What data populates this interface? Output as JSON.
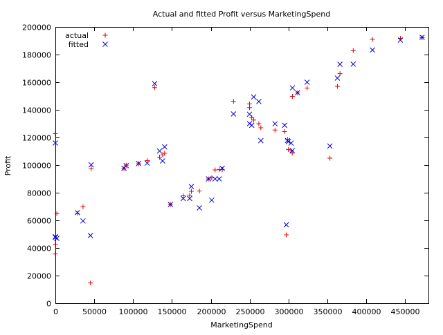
{
  "chart_data": {
    "type": "scatter",
    "title": "Actual and fitted Profit versus MarketingSpend",
    "xlabel": "MarketingSpend",
    "ylabel": "Profit",
    "xlim": [
      0,
      480000
    ],
    "ylim": [
      0,
      200000
    ],
    "xticks": [
      0,
      50000,
      100000,
      150000,
      200000,
      250000,
      300000,
      350000,
      400000,
      450000
    ],
    "yticks": [
      0,
      20000,
      40000,
      60000,
      80000,
      100000,
      120000,
      140000,
      160000,
      180000,
      200000
    ],
    "legend": "top-left",
    "grid": false,
    "series": [
      {
        "name": "actual",
        "marker": "plus",
        "color": "#e00000",
        "points": [
          [
            471784,
            192262
          ],
          [
            443899,
            191792
          ],
          [
            407935,
            191050
          ],
          [
            383200,
            182902
          ],
          [
            366168,
            166188
          ],
          [
            362861,
            156991
          ],
          [
            127717,
            156123
          ],
          [
            323877,
            155753
          ],
          [
            311613,
            152212
          ],
          [
            304982,
            149760
          ],
          [
            229161,
            146122
          ],
          [
            249745,
            144259
          ],
          [
            249839,
            141586
          ],
          [
            252665,
            134308
          ],
          [
            255161,
            132602
          ],
          [
            261776,
            129918
          ],
          [
            264346,
            126993
          ],
          [
            282574,
            125371
          ],
          [
            294920,
            124267
          ],
          [
            0,
            122777
          ],
          [
            298664,
            118474
          ],
          [
            299737,
            111313
          ],
          [
            303320,
            110352
          ],
          [
            304768,
            108734
          ],
          [
            140574,
            108552
          ],
          [
            137962,
            107405
          ],
          [
            134051,
            105734
          ],
          [
            353184,
            105008
          ],
          [
            118148,
            103282
          ],
          [
            107138,
            101004
          ],
          [
            91131,
            99938
          ],
          [
            88219,
            97483
          ],
          [
            46086,
            97427
          ],
          [
            214635,
            96779
          ],
          [
            210798,
            96713
          ],
          [
            205518,
            96480
          ],
          [
            201127,
            90708
          ],
          [
            197029,
            89949
          ],
          [
            185266,
            81230
          ],
          [
            174999,
            81006
          ],
          [
            172796,
            78240
          ],
          [
            164471,
            77799
          ],
          [
            148001,
            71498
          ],
          [
            35534,
            69759
          ],
          [
            28335,
            65200
          ],
          [
            1904,
            64927
          ],
          [
            297114,
            49491
          ],
          [
            0,
            42560
          ],
          [
            0,
            35673
          ],
          [
            45174,
            14681
          ]
        ]
      },
      {
        "name": "fitted",
        "marker": "cross",
        "color": "#0000e0",
        "points": [
          [
            471784,
            192500
          ],
          [
            443899,
            190500
          ],
          [
            407935,
            183300
          ],
          [
            383200,
            173100
          ],
          [
            366168,
            173000
          ],
          [
            362861,
            163000
          ],
          [
            127717,
            159000
          ],
          [
            323877,
            160000
          ],
          [
            311613,
            152400
          ],
          [
            304982,
            155900
          ],
          [
            229161,
            137000
          ],
          [
            249745,
            136800
          ],
          [
            249839,
            130000
          ],
          [
            252665,
            128800
          ],
          [
            255161,
            149300
          ],
          [
            261776,
            146000
          ],
          [
            264346,
            117700
          ],
          [
            282574,
            129900
          ],
          [
            294920,
            128800
          ],
          [
            0,
            116000
          ],
          [
            298664,
            117800
          ],
          [
            299737,
            117000
          ],
          [
            303320,
            115900
          ],
          [
            304768,
            110500
          ],
          [
            140574,
            113200
          ],
          [
            137962,
            103000
          ],
          [
            134051,
            110200
          ],
          [
            353184,
            113800
          ],
          [
            118148,
            101400
          ],
          [
            107138,
            101200
          ],
          [
            91131,
            99600
          ],
          [
            88219,
            97700
          ],
          [
            46086,
            100200
          ],
          [
            214635,
            97700
          ],
          [
            210798,
            90000
          ],
          [
            205518,
            90000
          ],
          [
            201127,
            74600
          ],
          [
            197029,
            90000
          ],
          [
            185266,
            69000
          ],
          [
            174999,
            84500
          ],
          [
            172796,
            75800
          ],
          [
            164471,
            75800
          ],
          [
            148001,
            71500
          ],
          [
            35534,
            59600
          ],
          [
            28335,
            65600
          ],
          [
            1904,
            47000
          ],
          [
            297114,
            56800
          ],
          [
            0,
            48200
          ],
          [
            0,
            47700
          ],
          [
            45174,
            49000
          ]
        ]
      }
    ]
  }
}
